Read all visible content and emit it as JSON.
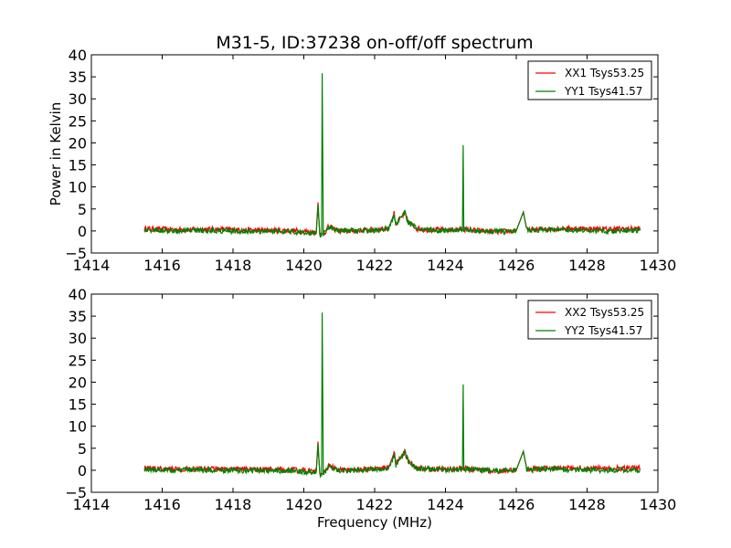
{
  "chart_data": {
    "title": "M31-5, ID:37238 on-off/off spectrum",
    "subplots": [
      {
        "type": "line",
        "ylabel": "Power in Kelvin",
        "xlabel": "",
        "xlim": [
          1414,
          1430
        ],
        "ylim": [
          -5,
          40
        ],
        "xticks": [
          "1414",
          "1416",
          "1418",
          "1420",
          "1422",
          "1424",
          "1426",
          "1428",
          "1430"
        ],
        "yticks": [
          "−5",
          "0",
          "5",
          "10",
          "15",
          "20",
          "25",
          "30",
          "35",
          "40"
        ],
        "grid": false,
        "legend_position": "top-right",
        "series": [
          {
            "name": "XX1 Tsys53.25",
            "color": "#ff0000",
            "x": [
              1415.5,
              1416.5,
              1417.5,
              1418.5,
              1419.5,
              1420.0,
              1420.35,
              1420.4,
              1420.45,
              1420.5,
              1420.6,
              1420.7,
              1421.0,
              1421.5,
              1422.0,
              1422.4,
              1422.55,
              1422.6,
              1422.7,
              1422.8,
              1422.85,
              1422.95,
              1423.2,
              1423.5,
              1424.0,
              1424.5,
              1425.0,
              1425.5,
              1426.0,
              1426.2,
              1426.3,
              1426.5,
              1427.0,
              1427.5,
              1428.0,
              1428.5,
              1429.0,
              1429.5
            ],
            "y": [
              0.5,
              0.3,
              0.4,
              0.2,
              0.1,
              0.0,
              -0.3,
              6.5,
              -0.5,
              -1.0,
              -0.3,
              1.0,
              0.0,
              0.1,
              0.3,
              0.6,
              4.0,
              1.5,
              2.5,
              3.5,
              4.0,
              2.0,
              0.5,
              0.3,
              0.2,
              0.4,
              0.0,
              -0.2,
              0.1,
              4.3,
              0.2,
              0.3,
              0.5,
              0.6,
              0.5,
              0.4,
              0.5,
              0.5
            ]
          },
          {
            "name": "YY1 Tsys41.57",
            "color": "#008000",
            "x": [
              1415.5,
              1416.5,
              1417.5,
              1418.5,
              1419.5,
              1420.0,
              1420.35,
              1420.4,
              1420.45,
              1420.5,
              1420.52,
              1420.55,
              1420.6,
              1420.7,
              1421.0,
              1421.5,
              1422.0,
              1422.4,
              1422.55,
              1422.6,
              1422.7,
              1422.8,
              1422.85,
              1422.95,
              1423.2,
              1423.5,
              1424.0,
              1424.48,
              1424.5,
              1424.52,
              1425.0,
              1425.5,
              1426.0,
              1426.2,
              1426.3,
              1426.5,
              1427.0,
              1427.5,
              1428.0,
              1428.5,
              1429.0,
              1429.5
            ],
            "y": [
              0.2,
              0.0,
              0.1,
              -0.1,
              -0.1,
              -0.3,
              -0.5,
              6.0,
              -0.8,
              -1.2,
              35.8,
              -0.5,
              -0.2,
              1.0,
              0.0,
              0.0,
              0.2,
              0.5,
              3.5,
              1.2,
              2.5,
              3.5,
              4.2,
              2.0,
              0.4,
              0.3,
              0.1,
              0.2,
              19.5,
              0.3,
              0.0,
              -0.1,
              0.0,
              4.3,
              0.1,
              0.2,
              0.3,
              0.2,
              0.1,
              0.0,
              0.1,
              0.1
            ]
          }
        ]
      },
      {
        "type": "line",
        "ylabel": "",
        "xlabel": "Frequency (MHz)",
        "xlim": [
          1414,
          1430
        ],
        "ylim": [
          -5,
          40
        ],
        "xticks": [
          "1414",
          "1416",
          "1418",
          "1420",
          "1422",
          "1424",
          "1426",
          "1428",
          "1430"
        ],
        "yticks": [
          "−5",
          "0",
          "5",
          "10",
          "15",
          "20",
          "25",
          "30",
          "35",
          "40"
        ],
        "grid": false,
        "legend_position": "top-right",
        "series": [
          {
            "name": "XX2 Tsys53.25",
            "color": "#ff0000",
            "x": [
              1415.5,
              1416.5,
              1417.5,
              1418.5,
              1419.5,
              1420.0,
              1420.35,
              1420.4,
              1420.45,
              1420.5,
              1420.6,
              1420.7,
              1421.0,
              1421.5,
              1422.0,
              1422.4,
              1422.55,
              1422.6,
              1422.7,
              1422.8,
              1422.85,
              1422.95,
              1423.2,
              1423.5,
              1424.0,
              1424.5,
              1425.0,
              1425.5,
              1426.0,
              1426.2,
              1426.3,
              1426.5,
              1427.0,
              1427.5,
              1428.0,
              1428.5,
              1429.0,
              1429.5
            ],
            "y": [
              0.5,
              0.3,
              0.4,
              0.2,
              0.1,
              0.0,
              -0.3,
              6.5,
              -0.5,
              -1.0,
              -0.3,
              1.0,
              0.0,
              0.1,
              0.3,
              0.6,
              4.0,
              1.5,
              2.5,
              3.5,
              4.0,
              2.0,
              0.5,
              0.3,
              0.2,
              0.4,
              0.0,
              -0.2,
              0.1,
              4.3,
              0.2,
              0.3,
              0.5,
              0.6,
              0.5,
              0.4,
              0.5,
              0.5
            ]
          },
          {
            "name": "YY2 Tsys41.57",
            "color": "#008000",
            "x": [
              1415.5,
              1416.5,
              1417.5,
              1418.5,
              1419.5,
              1420.0,
              1420.35,
              1420.4,
              1420.45,
              1420.5,
              1420.52,
              1420.55,
              1420.6,
              1420.7,
              1421.0,
              1421.5,
              1422.0,
              1422.4,
              1422.55,
              1422.6,
              1422.7,
              1422.8,
              1422.85,
              1422.95,
              1423.2,
              1423.5,
              1424.0,
              1424.48,
              1424.5,
              1424.52,
              1425.0,
              1425.5,
              1426.0,
              1426.2,
              1426.3,
              1426.5,
              1427.0,
              1427.5,
              1428.0,
              1428.5,
              1429.0,
              1429.5
            ],
            "y": [
              0.2,
              0.0,
              0.1,
              -0.1,
              -0.1,
              -0.3,
              -0.5,
              6.0,
              -0.8,
              -1.2,
              35.8,
              -0.5,
              -0.2,
              1.0,
              0.0,
              0.0,
              0.2,
              0.5,
              3.5,
              1.2,
              2.5,
              3.5,
              4.2,
              2.0,
              0.4,
              0.3,
              0.1,
              0.2,
              19.5,
              0.3,
              0.0,
              -0.1,
              0.0,
              4.3,
              0.1,
              0.2,
              0.3,
              0.2,
              0.1,
              0.0,
              0.1,
              0.1
            ]
          }
        ]
      }
    ]
  }
}
